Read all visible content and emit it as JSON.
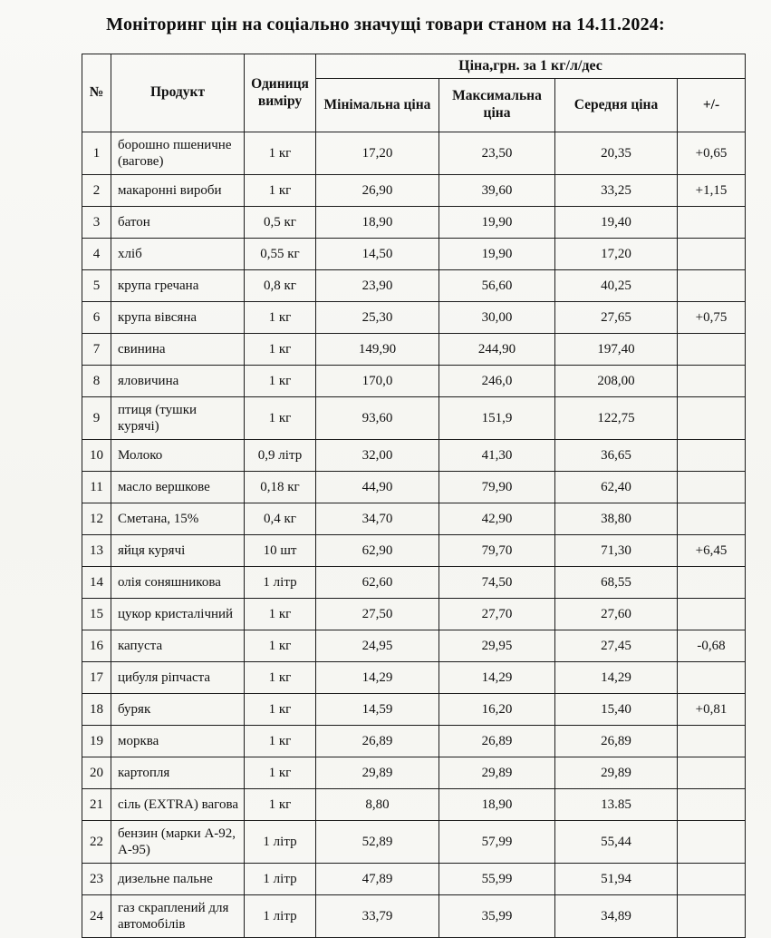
{
  "title": "Моніторинг цін на соціально значущі товари станом на 14.11.2024:",
  "table": {
    "headers": {
      "num": "№",
      "product": "Продукт",
      "unit": "Одиниця виміру",
      "price_group": "Ціна,грн. за 1 кг/л/дес",
      "min": "Мінімальна ціна",
      "max": "Максимальна ціна",
      "avg": "Середня ціна",
      "delta": "+/-"
    },
    "rows": [
      {
        "num": "1",
        "product": "борошно пшеничне (вагове)",
        "unit": "1 кг",
        "min": "17,20",
        "max": "23,50",
        "avg": "20,35",
        "delta": "+0,65"
      },
      {
        "num": "2",
        "product": "макаронні вироби",
        "unit": "1 кг",
        "min": "26,90",
        "max": "39,60",
        "avg": "33,25",
        "delta": "+1,15"
      },
      {
        "num": "3",
        "product": "батон",
        "unit": "0,5 кг",
        "min": "18,90",
        "max": "19,90",
        "avg": "19,40",
        "delta": ""
      },
      {
        "num": "4",
        "product": "хліб",
        "unit": "0,55 кг",
        "min": "14,50",
        "max": "19,90",
        "avg": "17,20",
        "delta": ""
      },
      {
        "num": "5",
        "product": "крупа гречана",
        "unit": "0,8 кг",
        "min": "23,90",
        "max": "56,60",
        "avg": "40,25",
        "delta": ""
      },
      {
        "num": "6",
        "product": "крупа вівсяна",
        "unit": "1 кг",
        "min": "25,30",
        "max": "30,00",
        "avg": "27,65",
        "delta": "+0,75"
      },
      {
        "num": "7",
        "product": "свинина",
        "unit": "1 кг",
        "min": "149,90",
        "max": "244,90",
        "avg": "197,40",
        "delta": ""
      },
      {
        "num": "8",
        "product": "яловичина",
        "unit": "1 кг",
        "min": "170,0",
        "max": "246,0",
        "avg": "208,00",
        "delta": ""
      },
      {
        "num": "9",
        "product": "птиця (тушки курячі)",
        "unit": "1 кг",
        "min": "93,60",
        "max": "151,9",
        "avg": "122,75",
        "delta": ""
      },
      {
        "num": "10",
        "product": "Молоко",
        "unit": "0,9 літр",
        "min": "32,00",
        "max": "41,30",
        "avg": "36,65",
        "delta": ""
      },
      {
        "num": "11",
        "product": "масло вершкове",
        "unit": "0,18 кг",
        "min": "44,90",
        "max": "79,90",
        "avg": "62,40",
        "delta": ""
      },
      {
        "num": "12",
        "product": "Сметана, 15%",
        "unit": "0,4 кг",
        "min": "34,70",
        "max": "42,90",
        "avg": "38,80",
        "delta": ""
      },
      {
        "num": "13",
        "product": "яйця курячі",
        "unit": "10 шт",
        "min": "62,90",
        "max": "79,70",
        "avg": "71,30",
        "delta": "+6,45"
      },
      {
        "num": "14",
        "product": "олія соняшникова",
        "unit": "1 літр",
        "min": "62,60",
        "max": "74,50",
        "avg": "68,55",
        "delta": ""
      },
      {
        "num": "15",
        "product": "цукор кристалічний",
        "unit": "1 кг",
        "min": "27,50",
        "max": "27,70",
        "avg": "27,60",
        "delta": ""
      },
      {
        "num": "16",
        "product": "капуста",
        "unit": "1 кг",
        "min": "24,95",
        "max": "29,95",
        "avg": "27,45",
        "delta": "-0,68"
      },
      {
        "num": "17",
        "product": "цибуля ріпчаста",
        "unit": "1 кг",
        "min": "14,29",
        "max": "14,29",
        "avg": "14,29",
        "delta": ""
      },
      {
        "num": "18",
        "product": "буряк",
        "unit": "1 кг",
        "min": "14,59",
        "max": "16,20",
        "avg": "15,40",
        "delta": "+0,81"
      },
      {
        "num": "19",
        "product": "морква",
        "unit": "1 кг",
        "min": "26,89",
        "max": "26,89",
        "avg": "26,89",
        "delta": ""
      },
      {
        "num": "20",
        "product": "картопля",
        "unit": "1 кг",
        "min": "29,89",
        "max": "29,89",
        "avg": "29,89",
        "delta": ""
      },
      {
        "num": "21",
        "product": "сіль (EXTRA) вагова",
        "unit": "1 кг",
        "min": "8,80",
        "max": "18,90",
        "avg": "13.85",
        "delta": ""
      },
      {
        "num": "22",
        "product": "бензин (марки А-92, А-95)",
        "unit": "1 літр",
        "min": "52,89",
        "max": "57,99",
        "avg": "55,44",
        "delta": ""
      },
      {
        "num": "23",
        "product": "дизельне пальне",
        "unit": "1 літр",
        "min": "47,89",
        "max": "55,99",
        "avg": "51,94",
        "delta": ""
      },
      {
        "num": "24",
        "product": "газ скраплений для автомобілів",
        "unit": "1 літр",
        "min": "33,79",
        "max": "35,99",
        "avg": "34,89",
        "delta": ""
      }
    ]
  }
}
